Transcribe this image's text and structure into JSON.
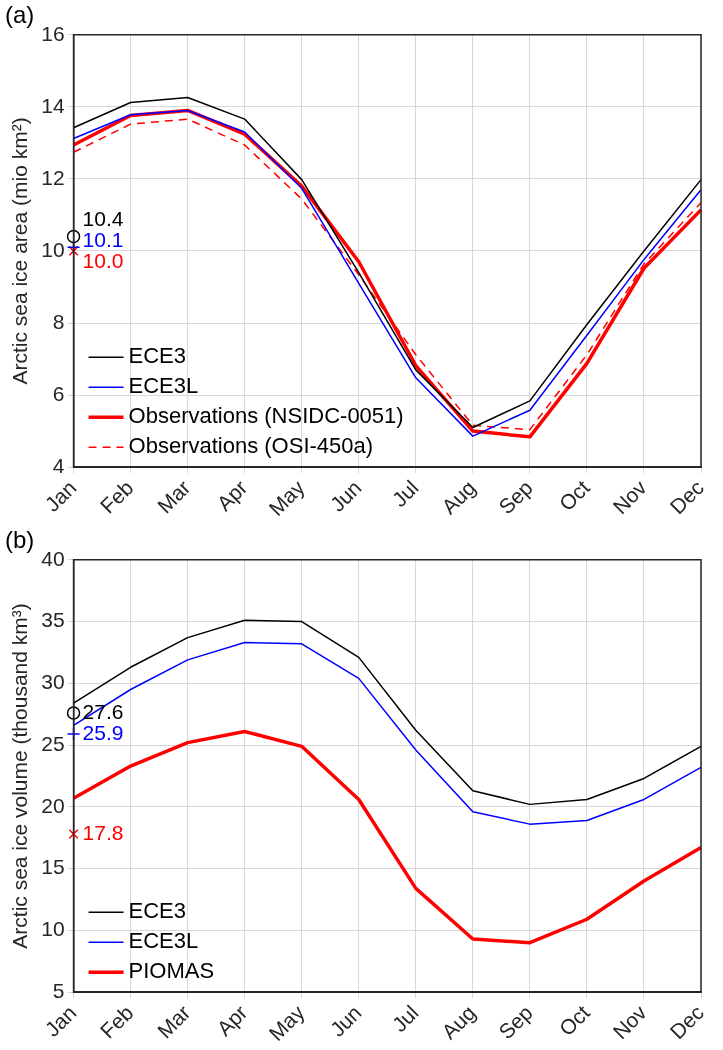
{
  "chart_data": [
    {
      "type": "line",
      "title": "(a)",
      "ylabel": "Arctic sea ice area (mio km²)",
      "categories": [
        "Jan",
        "Feb",
        "Mar",
        "Apr",
        "May",
        "Jun",
        "Jul",
        "Aug",
        "Sep",
        "Oct",
        "Nov",
        "Dec"
      ],
      "ylim": [
        4,
        16
      ],
      "yticks": [
        4,
        6,
        8,
        10,
        12,
        14,
        16
      ],
      "grid": true,
      "legend": "bottom left",
      "marker": "none",
      "series": [
        {
          "name": "ECE3",
          "color": "#000000",
          "line_style": "solid",
          "values": [
            13.42,
            14.12,
            14.26,
            13.66,
            11.98,
            9.4,
            6.7,
            5.1,
            5.84,
            7.96,
            10.0,
            11.98
          ]
        },
        {
          "name": "ECE3L",
          "color": "#0000ff",
          "line_style": "solid",
          "values": [
            13.12,
            13.78,
            13.9,
            13.3,
            11.74,
            9.1,
            6.48,
            4.86,
            5.58,
            7.66,
            9.76,
            11.7
          ]
        },
        {
          "name": "Observations (NSIDC-0051)",
          "color": "#ff0000",
          "line_style": "solid",
          "values": [
            12.94,
            13.76,
            13.9,
            13.24,
            11.8,
            9.7,
            6.82,
            5.0,
            4.84,
            6.88,
            9.52,
            11.14
          ]
        },
        {
          "name": "Observations (OSI-450a)",
          "color": "#ff0000",
          "line_style": "dashed",
          "values": [
            12.74,
            13.52,
            13.66,
            12.94,
            11.44,
            9.34,
            7.12,
            5.16,
            5.04,
            7.12,
            9.64,
            11.34
          ]
        },
        {
          "type": "scatter",
          "marker": "circle",
          "color": "#000000",
          "x": [
            "Jan"
          ],
          "values": [
            10.4
          ],
          "value_labels": [
            "10.4"
          ]
        },
        {
          "type": "scatter",
          "marker": "cross",
          "color": "#0000ff",
          "x": [
            "Jan"
          ],
          "values": [
            10.1
          ],
          "value_labels": [
            "10.1"
          ]
        },
        {
          "type": "scatter",
          "marker": "x",
          "color": "#ff0000",
          "x": [
            "Jan"
          ],
          "values": [
            10.0
          ],
          "value_labels": [
            "10.0"
          ]
        }
      ]
    },
    {
      "type": "line",
      "title": "(b)",
      "ylabel": "Arctic sea ice volume (thousand km³)",
      "categories": [
        "Jan",
        "Feb",
        "Mar",
        "Apr",
        "May",
        "Jun",
        "Jul",
        "Aug",
        "Sep",
        "Oct",
        "Nov",
        "Dec"
      ],
      "ylim": [
        5,
        40
      ],
      "yticks": [
        5,
        10,
        15,
        20,
        25,
        30,
        35,
        40
      ],
      "grid": true,
      "legend": "bottom left",
      "marker": "none",
      "series": [
        {
          "name": "ECE3",
          "color": "#000000",
          "line_style": "solid",
          "values": [
            28.4,
            31.3,
            33.7,
            35.1,
            35.0,
            32.1,
            26.2,
            21.3,
            20.2,
            20.6,
            22.3,
            24.9
          ]
        },
        {
          "name": "ECE3L",
          "color": "#0000ff",
          "line_style": "solid",
          "values": [
            26.6,
            29.5,
            31.9,
            33.3,
            33.2,
            30.4,
            24.6,
            19.6,
            18.6,
            18.9,
            20.6,
            23.2
          ]
        },
        {
          "name": "PIOMAS",
          "color": "#ff0000",
          "line_style": "solid",
          "values": [
            20.7,
            23.3,
            25.2,
            26.1,
            24.9,
            20.6,
            13.4,
            9.3,
            9.0,
            10.9,
            14.0,
            16.7
          ]
        },
        {
          "type": "scatter",
          "marker": "circle",
          "color": "#000000",
          "x": [
            "Jan"
          ],
          "values": [
            27.6
          ],
          "value_labels": [
            "27.6"
          ]
        },
        {
          "type": "scatter",
          "marker": "cross",
          "color": "#0000ff",
          "x": [
            "Jan"
          ],
          "values": [
            25.9
          ],
          "value_labels": [
            "25.9"
          ]
        },
        {
          "type": "scatter",
          "marker": "x",
          "color": "#ff0000",
          "x": [
            "Jan"
          ],
          "values": [
            17.8
          ],
          "value_labels": [
            "17.8"
          ]
        }
      ]
    }
  ]
}
